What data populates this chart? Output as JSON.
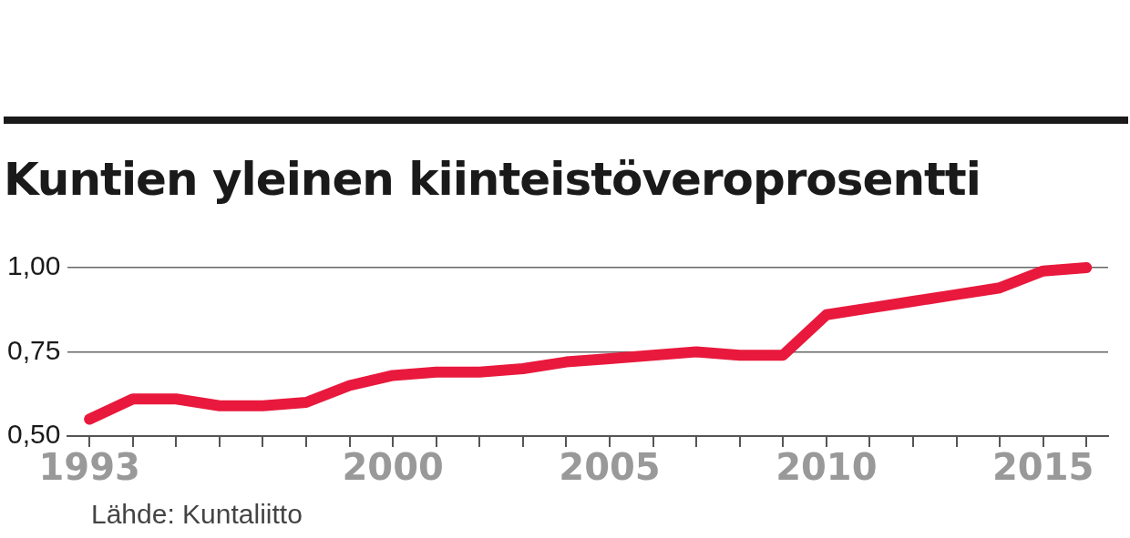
{
  "chart_data": {
    "type": "line",
    "title": "Kuntien yleinen kiinteistöveroprosentti",
    "categories": [
      "1993",
      null,
      null,
      null,
      null,
      null,
      null,
      "2000",
      null,
      null,
      null,
      null,
      "2005",
      null,
      null,
      null,
      null,
      "2010",
      null,
      null,
      null,
      null,
      "2015",
      null
    ],
    "series": [
      {
        "color": "#e8193c",
        "values": [
          0.55,
          0.61,
          0.61,
          0.59,
          0.59,
          0.6,
          0.65,
          0.68,
          0.69,
          0.69,
          0.7,
          0.72,
          0.73,
          0.74,
          0.75,
          0.74,
          0.74,
          0.86,
          0.88,
          0.9,
          0.92,
          0.94,
          0.99,
          1.0
        ]
      }
    ],
    "ylim": [
      0.5,
      1.0
    ],
    "yticks": [
      {
        "value": 0.5,
        "label": "0,50"
      },
      {
        "value": 0.75,
        "label": "0,75"
      },
      {
        "value": 1.0,
        "label": "1,00"
      }
    ],
    "grid": "y",
    "legend": false,
    "marker": "none",
    "line_style": "solid",
    "annotations": [
      "Lähde: Kuntaliitto"
    ]
  }
}
